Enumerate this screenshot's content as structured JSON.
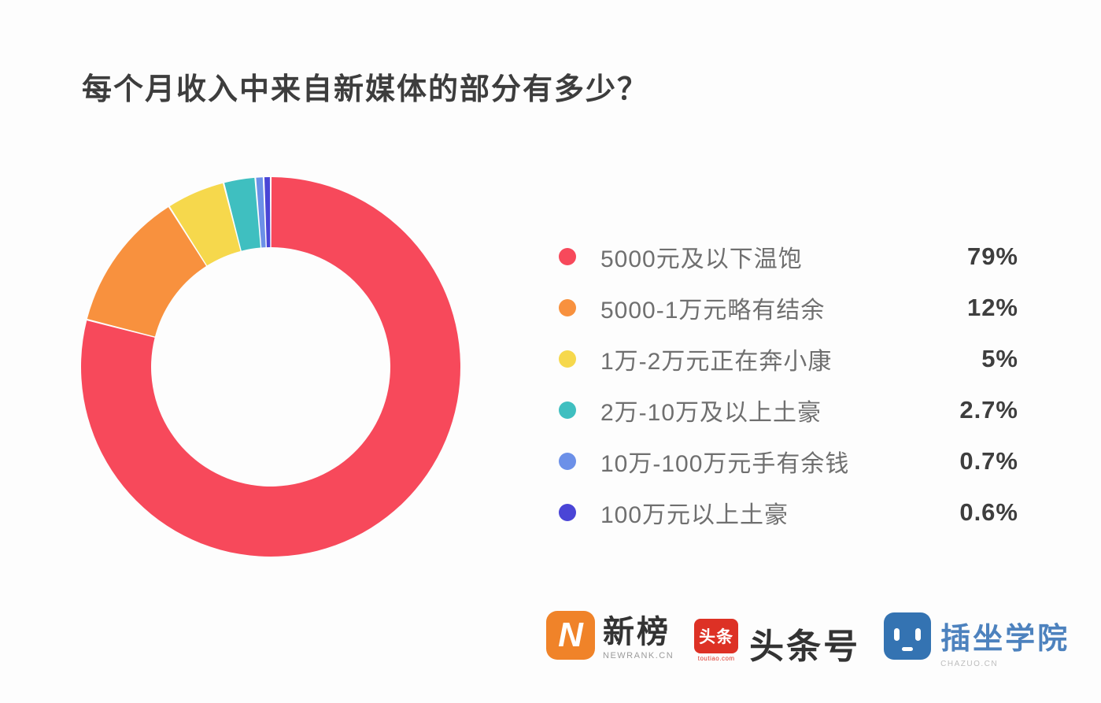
{
  "title": "每个月收入中来自新媒体的部分有多少？",
  "chart_data": {
    "type": "pie",
    "subtype": "donut",
    "title": "每个月收入中来自新媒体的部分有多少？",
    "categories": [
      "5000元及以下温饱",
      "5000-1万元略有结余",
      "1万-2万元正在奔小康",
      "2万-10万及以上土豪",
      "10万-100万元手有余钱",
      "100万元以上土豪"
    ],
    "values": [
      79,
      12,
      5,
      2.7,
      0.7,
      0.6
    ],
    "value_labels": [
      "79%",
      "12%",
      "5%",
      "2.7%",
      "0.7%",
      "0.6%"
    ],
    "colors": [
      "#f7495b",
      "#f8913e",
      "#f6d84c",
      "#3fbfc0",
      "#6c90e8",
      "#4a45d6"
    ],
    "start_angle_deg": 0,
    "direction": "clockwise",
    "donut_hole_ratio": 0.63,
    "legend_position": "right",
    "segment_gap_color": "#ffffff"
  },
  "footer": {
    "brands": [
      {
        "icon_text": "N",
        "icon_color": "#f08329",
        "name": "新榜",
        "sub": "NEWRANK.CN"
      },
      {
        "icon_text": "头条",
        "icon_color": "#dd3125",
        "name": "头条号",
        "sub": "toutiao.com"
      },
      {
        "icon": "robot-face",
        "icon_color": "#3473b2",
        "name": "插坐学院",
        "sub": "CHAZUO.CN"
      }
    ]
  }
}
